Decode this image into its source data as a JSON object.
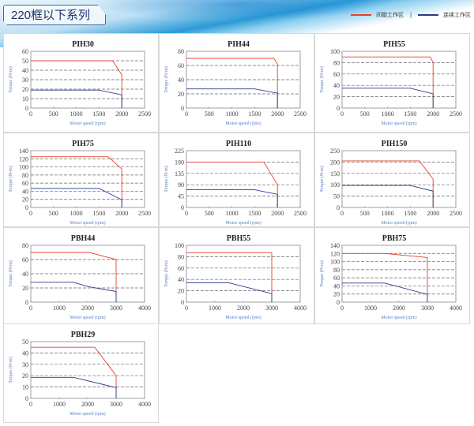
{
  "header": {
    "title": "220框以下系列"
  },
  "legend": {
    "intermittent": {
      "label": "间歇工作区",
      "color": "#e8412c"
    },
    "continuous": {
      "label": "连续工作区",
      "color": "#2b3a8c"
    }
  },
  "chart_data": [
    {
      "type": "line",
      "title": "PIH30",
      "xlabel": "Motor speed (rpm)",
      "ylabel": "Torque (N-m)",
      "xlim": [
        0,
        2500
      ],
      "ylim": [
        0,
        60
      ],
      "xticks": [
        0,
        500,
        1000,
        1500,
        2000,
        2500
      ],
      "yticks": [
        0,
        10,
        20,
        30,
        40,
        50,
        60
      ],
      "series": [
        {
          "name": "间歇工作区",
          "points": [
            [
              0,
              50
            ],
            [
              1800,
              50
            ],
            [
              2000,
              35
            ],
            [
              2000,
              0
            ]
          ]
        },
        {
          "name": "连续工作区",
          "points": [
            [
              0,
              19
            ],
            [
              1500,
              19
            ],
            [
              2000,
              14
            ],
            [
              2000,
              0
            ]
          ]
        }
      ]
    },
    {
      "type": "line",
      "title": "PIH44",
      "xlabel": "Motor speed (rpm)",
      "ylabel": "Torque (N-m)",
      "xlim": [
        0,
        2500
      ],
      "ylim": [
        0,
        80
      ],
      "xticks": [
        0,
        500,
        1000,
        1500,
        2000,
        2500
      ],
      "yticks": [
        0,
        20,
        40,
        60,
        80
      ],
      "series": [
        {
          "name": "间歇工作区",
          "points": [
            [
              0,
              70
            ],
            [
              1920,
              70
            ],
            [
              2000,
              62
            ],
            [
              2000,
              0
            ]
          ]
        },
        {
          "name": "连续工作区",
          "points": [
            [
              0,
              27
            ],
            [
              1500,
              27
            ],
            [
              2000,
              21
            ],
            [
              2000,
              0
            ]
          ]
        }
      ]
    },
    {
      "type": "line",
      "title": "PIH55",
      "xlabel": "Motor speed (rpm)",
      "ylabel": "Torque (N-m)",
      "xlim": [
        0,
        2500
      ],
      "ylim": [
        0,
        100
      ],
      "xticks": [
        0,
        500,
        1000,
        1500,
        2000,
        2500
      ],
      "yticks": [
        0,
        20,
        40,
        60,
        80,
        100
      ],
      "series": [
        {
          "name": "间歇工作区",
          "points": [
            [
              0,
              90
            ],
            [
              1940,
              90
            ],
            [
              2000,
              80
            ],
            [
              2000,
              0
            ]
          ]
        },
        {
          "name": "连续工作区",
          "points": [
            [
              0,
              35
            ],
            [
              1500,
              35
            ],
            [
              2000,
              25
            ],
            [
              2000,
              0
            ]
          ]
        }
      ]
    },
    {
      "type": "line",
      "title": "PIH75",
      "xlabel": "Motor speed (rpm)",
      "ylabel": "Torque (N-m)",
      "xlim": [
        0,
        2500
      ],
      "ylim": [
        0,
        140
      ],
      "xticks": [
        0,
        500,
        1000,
        1500,
        2000,
        2500
      ],
      "yticks": [
        0,
        20,
        40,
        60,
        80,
        100,
        120,
        140
      ],
      "series": [
        {
          "name": "间歇工作区",
          "points": [
            [
              0,
              125
            ],
            [
              1700,
              125
            ],
            [
              2000,
              95
            ],
            [
              2000,
              0
            ]
          ]
        },
        {
          "name": "连续工作区",
          "points": [
            [
              0,
              47
            ],
            [
              1500,
              47
            ],
            [
              2000,
              19
            ],
            [
              2000,
              0
            ]
          ]
        }
      ]
    },
    {
      "type": "line",
      "title": "PIH110",
      "xlabel": "Motor speed (rpm)",
      "ylabel": "Torque (N-m)",
      "xlim": [
        0,
        2500
      ],
      "ylim": [
        0,
        225
      ],
      "xticks": [
        0,
        500,
        1000,
        1500,
        2000,
        2500
      ],
      "yticks": [
        0,
        45,
        90,
        135,
        180,
        225
      ],
      "series": [
        {
          "name": "间歇工作区",
          "points": [
            [
              0,
              180
            ],
            [
              1700,
              180
            ],
            [
              2000,
              90
            ],
            [
              2000,
              0
            ]
          ]
        },
        {
          "name": "连续工作区",
          "points": [
            [
              0,
              70
            ],
            [
              1500,
              70
            ],
            [
              2000,
              52
            ],
            [
              2000,
              0
            ]
          ]
        }
      ]
    },
    {
      "type": "line",
      "title": "PIH150",
      "xlabel": "Motor speed (rpm)",
      "ylabel": "Torque (N-m)",
      "xlim": [
        0,
        2500
      ],
      "ylim": [
        0,
        250
      ],
      "xticks": [
        0,
        500,
        1000,
        1500,
        2000,
        2500
      ],
      "yticks": [
        0,
        50,
        100,
        150,
        200,
        250
      ],
      "series": [
        {
          "name": "间歇工作区",
          "points": [
            [
              0,
              205
            ],
            [
              1700,
              205
            ],
            [
              2000,
              125
            ],
            [
              2000,
              0
            ]
          ]
        },
        {
          "name": "连续工作区",
          "points": [
            [
              0,
              97
            ],
            [
              1500,
              97
            ],
            [
              2000,
              72
            ],
            [
              2000,
              0
            ]
          ]
        }
      ]
    },
    {
      "type": "line",
      "title": "PBH44",
      "xlabel": "Motor speed (rpm)",
      "ylabel": "Torque (N-m)",
      "xlim": [
        0,
        4000
      ],
      "ylim": [
        0,
        80
      ],
      "xticks": [
        0,
        1000,
        2000,
        3000,
        4000
      ],
      "yticks": [
        0,
        20,
        40,
        60,
        80
      ],
      "series": [
        {
          "name": "间歇工作区",
          "points": [
            [
              0,
              70
            ],
            [
              2050,
              70
            ],
            [
              3000,
              60
            ],
            [
              3000,
              0
            ]
          ]
        },
        {
          "name": "连续工作区",
          "points": [
            [
              0,
              28
            ],
            [
              1500,
              28
            ],
            [
              2000,
              22
            ],
            [
              3000,
              15
            ],
            [
              3000,
              0
            ]
          ]
        }
      ]
    },
    {
      "type": "line",
      "title": "PBH55",
      "xlabel": "Motor speed (rpm)",
      "ylabel": "Torque (N-m)",
      "xlim": [
        0,
        4000
      ],
      "ylim": [
        0,
        100
      ],
      "xticks": [
        0,
        1000,
        2000,
        3000,
        4000
      ],
      "yticks": [
        0,
        20,
        40,
        60,
        80,
        100
      ],
      "series": [
        {
          "name": "间歇工作区",
          "points": [
            [
              0,
              87
            ],
            [
              3000,
              87
            ],
            [
              3000,
              0
            ]
          ]
        },
        {
          "name": "连续工作区",
          "points": [
            [
              0,
              34
            ],
            [
              1500,
              34
            ],
            [
              3000,
              15
            ],
            [
              3000,
              0
            ]
          ]
        }
      ]
    },
    {
      "type": "line",
      "title": "PBH75",
      "xlabel": "Motor speed (rpm)",
      "ylabel": "Torque (N-m)",
      "xlim": [
        0,
        4000
      ],
      "ylim": [
        0,
        140
      ],
      "xticks": [
        0,
        1000,
        2000,
        3000,
        4000
      ],
      "yticks": [
        0,
        20,
        40,
        60,
        80,
        100,
        120,
        140
      ],
      "series": [
        {
          "name": "间歇工作区",
          "points": [
            [
              0,
              120
            ],
            [
              1500,
              120
            ],
            [
              3000,
              110
            ],
            [
              3000,
              0
            ]
          ]
        },
        {
          "name": "连续工作区",
          "points": [
            [
              0,
              47
            ],
            [
              1500,
              47
            ],
            [
              3000,
              19
            ],
            [
              3000,
              0
            ]
          ]
        }
      ]
    },
    {
      "type": "line",
      "title": "PBH29",
      "xlabel": "Motor speed (rpm)",
      "ylabel": "Torque (N-m)",
      "xlim": [
        0,
        4000
      ],
      "ylim": [
        0,
        50
      ],
      "xticks": [
        0,
        1000,
        2000,
        3000,
        4000
      ],
      "yticks": [
        0,
        10,
        20,
        30,
        40,
        50
      ],
      "series": [
        {
          "name": "间歇工作区",
          "points": [
            [
              0,
              45
            ],
            [
              2250,
              45
            ],
            [
              3000,
              20
            ],
            [
              3000,
              0
            ]
          ]
        },
        {
          "name": "连续工作区",
          "points": [
            [
              0,
              18.5
            ],
            [
              1500,
              18.5
            ],
            [
              3000,
              9.5
            ],
            [
              3000,
              0
            ]
          ]
        }
      ]
    }
  ]
}
